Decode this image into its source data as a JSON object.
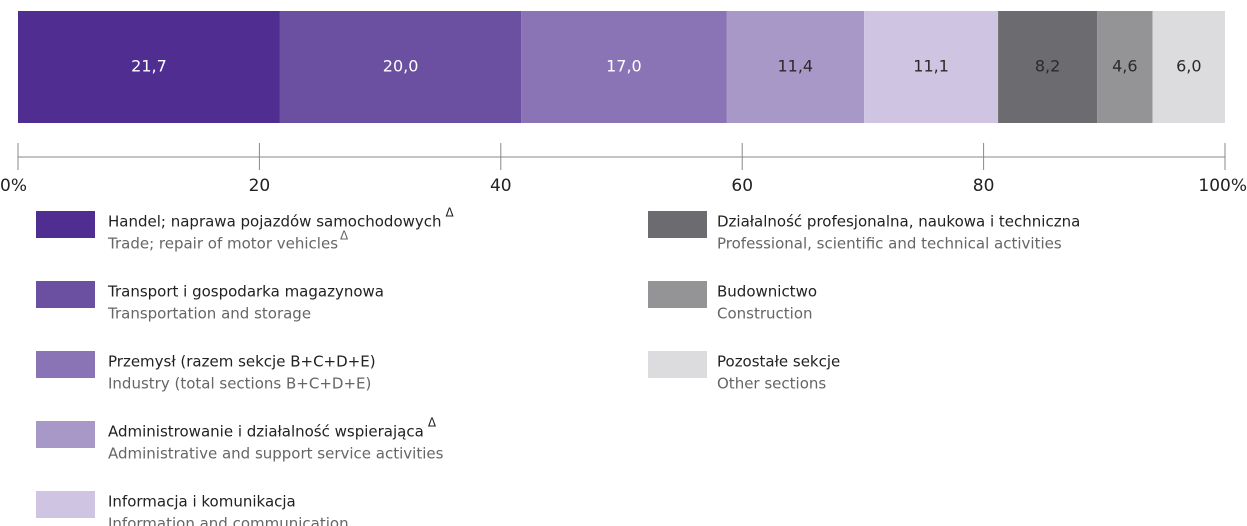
{
  "chart_data": {
    "type": "bar",
    "orientation": "horizontal",
    "stacked": true,
    "xlim": [
      0,
      100
    ],
    "xticks": [
      {
        "value": 0,
        "label": "0%"
      },
      20,
      40,
      60,
      80,
      {
        "value": 100,
        "label": "100%"
      }
    ],
    "series": [
      {
        "name": "Handel; naprawa pojazdów samochodowych",
        "name_note": "Δ",
        "name_en": "Trade; repair of motor vehicles",
        "name_en_note": "Δ",
        "color": "#4f2d91",
        "label_color": "#ffffff",
        "values": [
          21.7
        ],
        "value_labels": [
          "21,7"
        ]
      },
      {
        "name": "Transport i gospodarka magazynowa",
        "name_en": "Transportation and storage",
        "color": "#6b4fa0",
        "label_color": "#ffffff",
        "values": [
          20.0
        ],
        "value_labels": [
          "20,0"
        ]
      },
      {
        "name": "Przemysł (razem sekcje B+C+D+E)",
        "name_en": "Industry (total sections B+C+D+E)",
        "color": "#8a74b5",
        "label_color": "#ffffff",
        "values": [
          17.0
        ],
        "value_labels": [
          "17,0"
        ]
      },
      {
        "name": "Administrowanie i działalność wspierająca",
        "name_note": "Δ",
        "name_en": "Administrative and support service activities",
        "color": "#a898c8",
        "label_color": "#2a2a2a",
        "values": [
          11.4
        ],
        "value_labels": [
          "11,4"
        ]
      },
      {
        "name": "Informacja i komunikacja",
        "name_en": "Information and communication",
        "color": "#cfc5e2",
        "label_color": "#2a2a2a",
        "values": [
          11.1
        ],
        "value_labels": [
          "11,1"
        ]
      },
      {
        "name": "Działalność profesjonalna, naukowa i techniczna",
        "name_en": "Professional, scientific and technical activities",
        "color": "#6c6c70",
        "label_color": "#2a2a2a",
        "values": [
          8.2
        ],
        "value_labels": [
          "8,2"
        ]
      },
      {
        "name": "Budownictwo",
        "name_en": "Construction",
        "color": "#949497",
        "label_color": "#2a2a2a",
        "values": [
          4.6
        ],
        "value_labels": [
          "4,6"
        ]
      },
      {
        "name": "Pozostałe sekcje",
        "name_en": "Other sections",
        "color": "#dcdcde",
        "label_color": "#2a2a2a",
        "values": [
          6.0
        ],
        "value_labels": [
          "6,0"
        ]
      }
    ]
  }
}
